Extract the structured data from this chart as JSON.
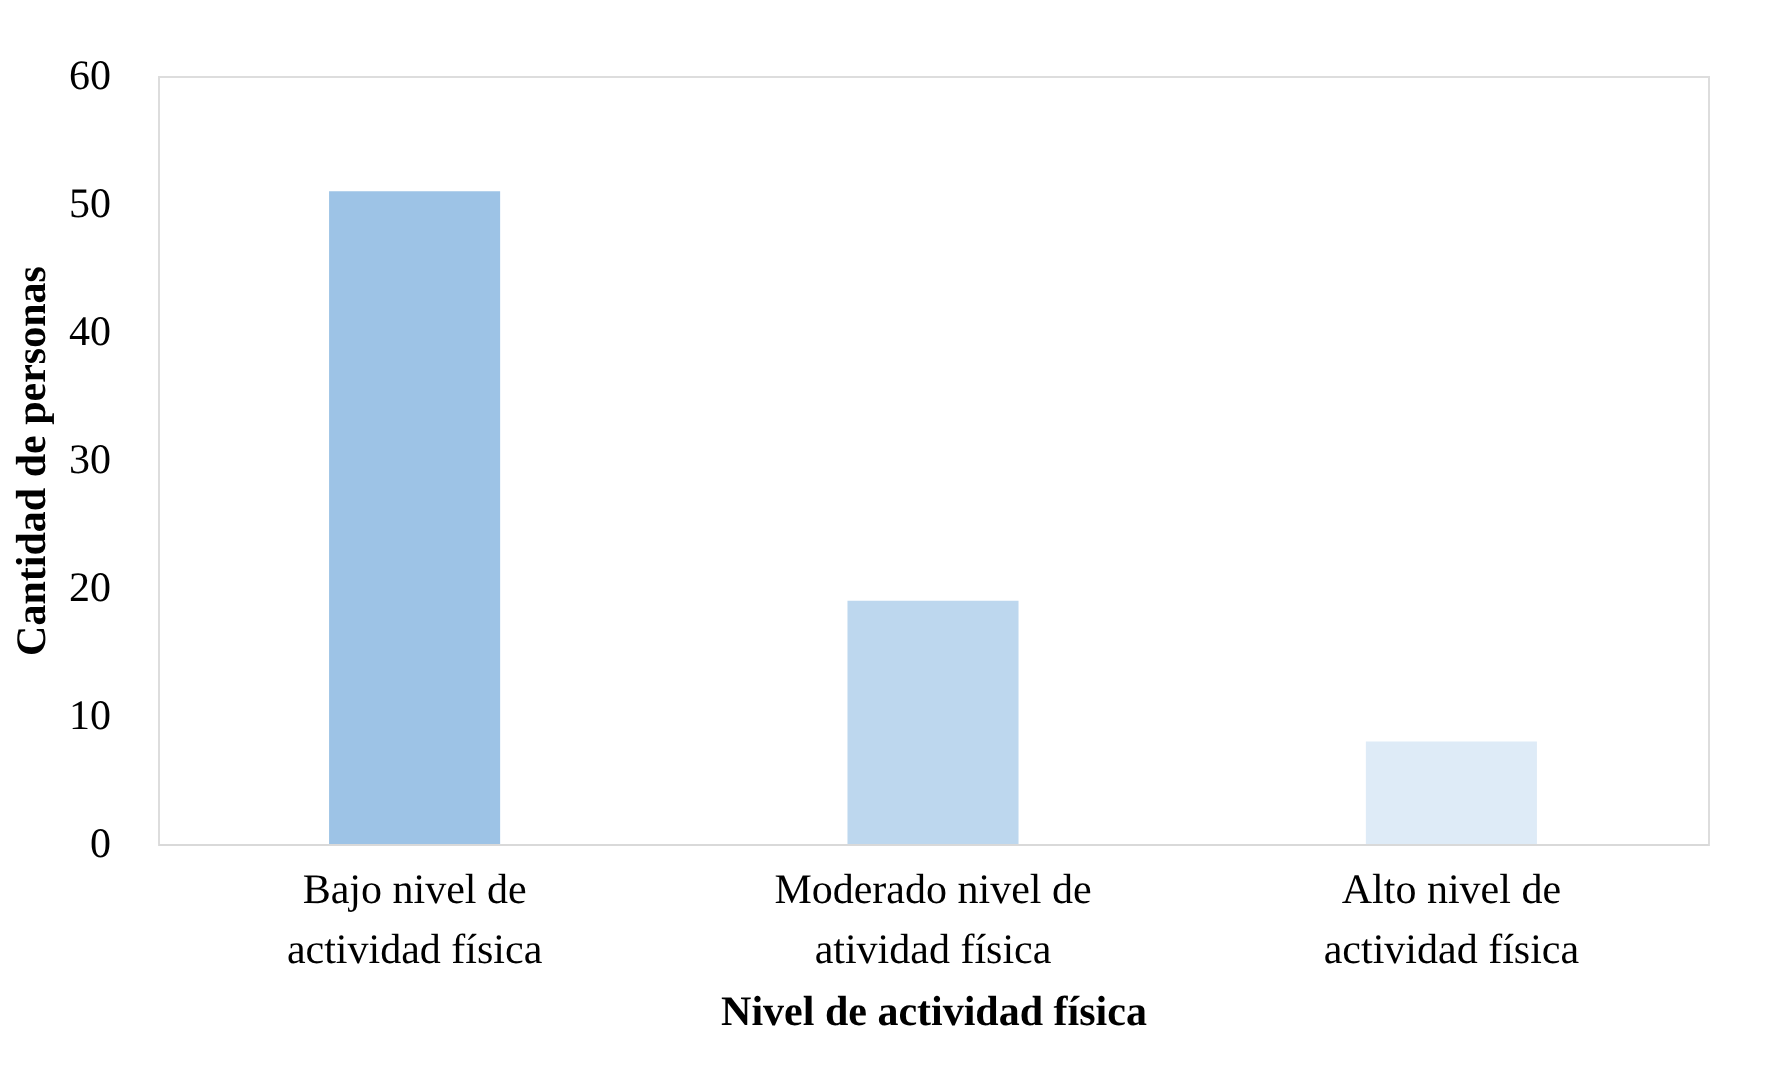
{
  "chart_data": {
    "type": "bar",
    "xlabel": "Nivel de actividad física",
    "ylabel": "Cantidad de personas",
    "categories": [
      "Bajo nivel de actividad física",
      "Moderado nivel de atividad física",
      "Alto nivel de actividad física"
    ],
    "values": [
      51,
      19,
      8
    ],
    "colors": [
      "#9dc3e6",
      "#bdd7ee",
      "#deebf7"
    ],
    "ylim": [
      0,
      60
    ],
    "yticks": [
      0,
      10,
      20,
      30,
      40,
      50,
      60
    ],
    "grid": false,
    "legend": false
  }
}
